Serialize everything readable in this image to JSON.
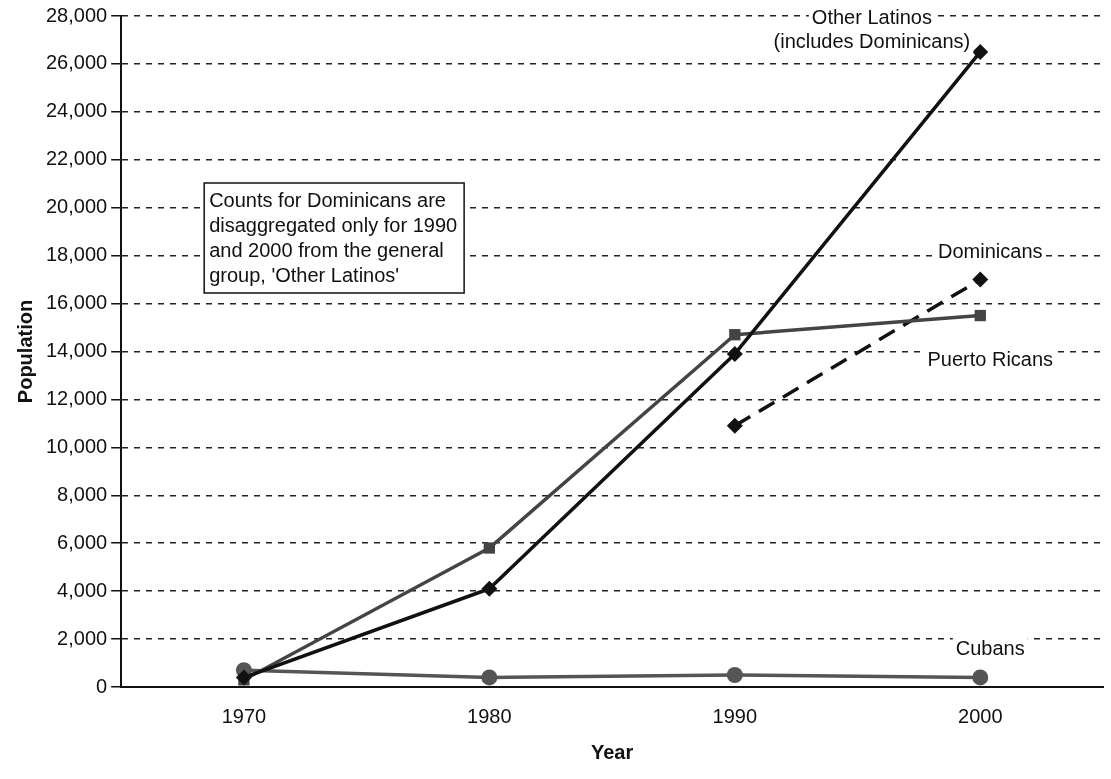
{
  "chart_data": {
    "type": "line",
    "xlabel": "Year",
    "ylabel": "Population",
    "categories": [
      "1970",
      "1980",
      "1990",
      "2000"
    ],
    "ylim": [
      0,
      28000
    ],
    "yticks": [
      0,
      {
        "value": 2000,
        "label": "2,000"
      },
      {
        "value": 4000,
        "label": "4,000"
      },
      {
        "value": 6000,
        "label": "6,000"
      },
      {
        "value": 8000,
        "label": "8,000"
      },
      {
        "value": 10000,
        "label": "10,000"
      },
      {
        "value": 12000,
        "label": "12,000"
      },
      {
        "value": 14000,
        "label": "14,000"
      },
      {
        "value": 16000,
        "label": "16,000"
      },
      {
        "value": 18000,
        "label": "18,000"
      },
      {
        "value": 20000,
        "label": "20,000"
      },
      {
        "value": 22000,
        "label": "22,000"
      },
      {
        "value": 24000,
        "label": "24,000"
      },
      {
        "value": 26000,
        "label": "26,000"
      },
      {
        "value": 28000,
        "label": "28,000"
      }
    ],
    "grid": "y",
    "legend": false,
    "line_style": "solid",
    "series": [
      {
        "name": "Other Latinos\n(includes Dominicans)",
        "color": "#111111",
        "marker": "diamond",
        "values": [
          400,
          4100,
          13900,
          26500
        ]
      },
      {
        "name": "Puerto Ricans",
        "color": "#444444",
        "marker": "square",
        "values": [
          300,
          5800,
          14700,
          15500
        ]
      },
      {
        "name": "Dominicans",
        "color": "#111111",
        "marker": "diamond",
        "line_style": "dashed",
        "values": [
          null,
          null,
          10900,
          17000
        ]
      },
      {
        "name": "Cubans",
        "color": "#555555",
        "marker": "circle",
        "values": [
          700,
          400,
          500,
          400
        ]
      }
    ],
    "annotations": [
      "Counts for Dominicans are\ndisaggregated only for 1990\nand 2000 from the general\ngroup, 'Other Latinos'"
    ]
  }
}
